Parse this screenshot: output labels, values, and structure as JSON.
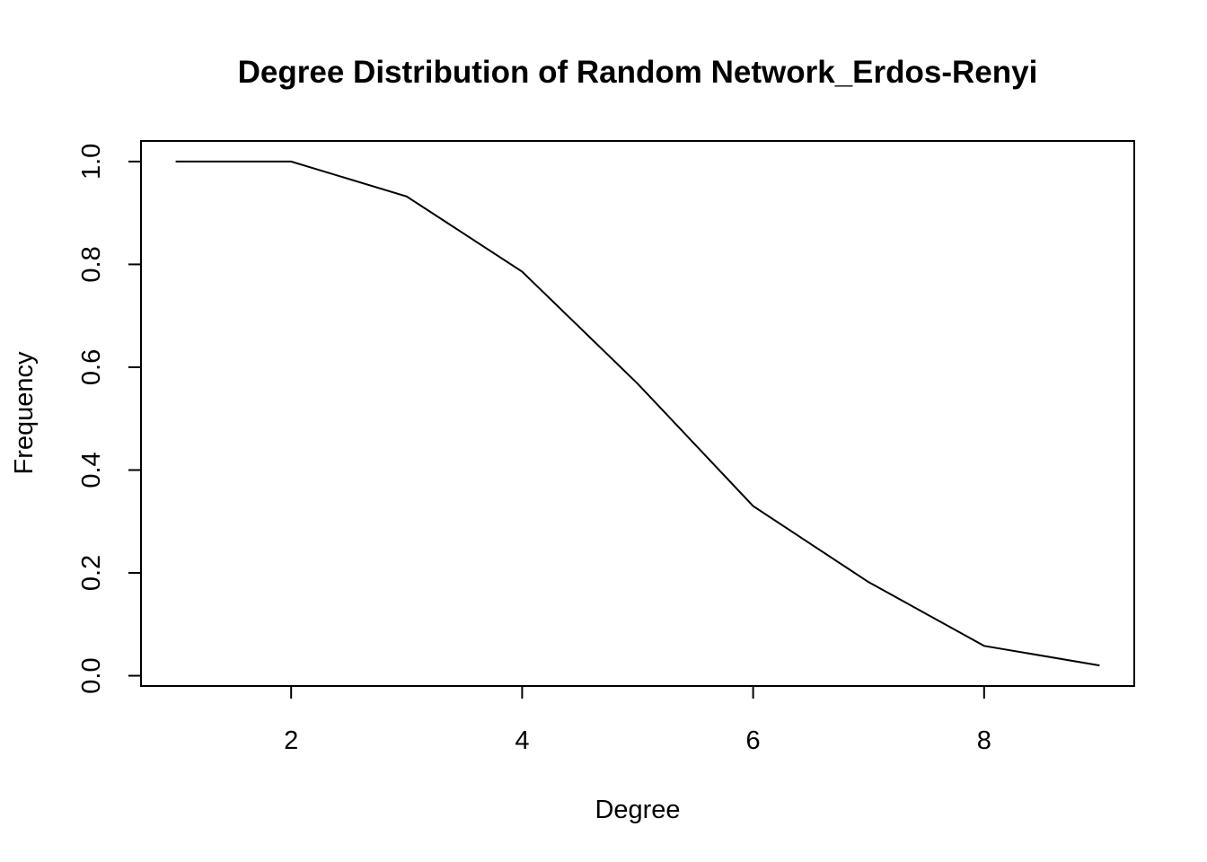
{
  "chart_data": {
    "type": "line",
    "title": "Degree Distribution of Random Network_Erdos-Renyi",
    "xlabel": "Degree",
    "ylabel": "Frequency",
    "xlim": [
      0.7,
      9.3
    ],
    "ylim": [
      -0.02,
      1.04
    ],
    "x_ticks": [
      2,
      4,
      6,
      8
    ],
    "x_tick_labels": [
      "2",
      "4",
      "6",
      "8"
    ],
    "y_ticks": [
      0.0,
      0.2,
      0.4,
      0.6,
      0.8,
      1.0
    ],
    "y_tick_labels": [
      "0.0",
      "0.2",
      "0.4",
      "0.6",
      "0.8",
      "1.0"
    ],
    "grid": false,
    "legend": "none",
    "series": [
      {
        "x": [
          1,
          2,
          3,
          4,
          5,
          6,
          7,
          8,
          9
        ],
        "values": [
          1.0,
          1.0,
          0.932,
          0.786,
          0.568,
          0.33,
          0.182,
          0.058,
          0.02
        ],
        "color": "#000000"
      }
    ]
  }
}
